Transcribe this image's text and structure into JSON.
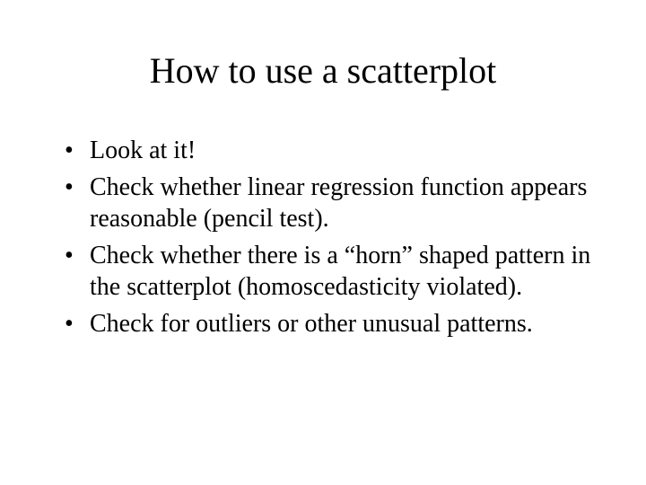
{
  "slide": {
    "title": "How to use a scatterplot",
    "bullets": [
      "Look at it!",
      "Check whether linear regression function appears reasonable (pencil test).",
      "Check whether there is a “horn” shaped pattern in the scatterplot (homoscedasticity violated).",
      "Check for outliers or other unusual patterns."
    ],
    "title_fontsize": 40,
    "body_fontsize": 28,
    "background_color": "#ffffff",
    "text_color": "#000000",
    "font_family": "Times New Roman"
  }
}
